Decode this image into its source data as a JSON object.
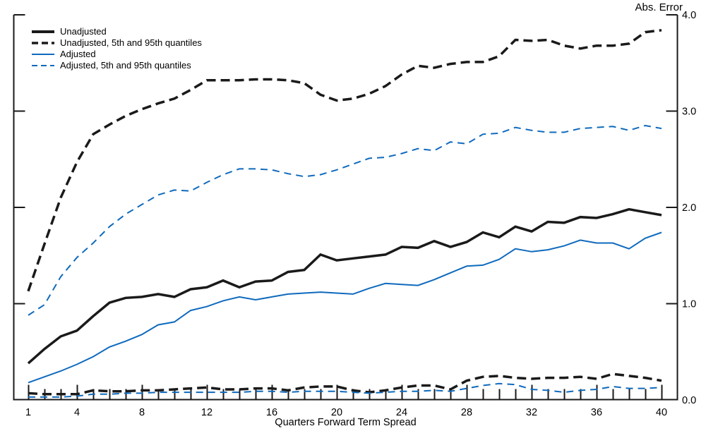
{
  "chart_data": {
    "type": "line",
    "title": "",
    "ylabel": "Abs. Error",
    "xlabel": "Quarters Forward Term Spread",
    "xlim": [
      0.1,
      41
    ],
    "ylim": [
      0.0,
      4.0
    ],
    "grid": false,
    "legend_position": "top-left",
    "y_axis_side": "right",
    "y_tick_values": [
      0,
      1,
      2,
      3,
      4
    ],
    "y_tick_labels": [
      "0.0",
      "1.0",
      "2.0",
      "3.0",
      "4.0"
    ],
    "x_major_ticks": [
      1,
      4,
      8,
      12,
      16,
      20,
      24,
      28,
      32,
      36,
      40
    ],
    "x_minor_tick_step": 1,
    "colors": {
      "black": "#1a1a1a",
      "blue": "#0f6abd"
    },
    "x": [
      1,
      2,
      3,
      4,
      5,
      6,
      7,
      8,
      9,
      10,
      11,
      12,
      13,
      14,
      15,
      16,
      17,
      18,
      19,
      20,
      21,
      22,
      23,
      24,
      25,
      26,
      27,
      28,
      29,
      30,
      31,
      32,
      33,
      34,
      35,
      36,
      37,
      38,
      39,
      40
    ],
    "legend": [
      {
        "label": "Unadjusted",
        "series_id": "unadjusted"
      },
      {
        "label": "Unadjusted, 5th and 95th quantiles",
        "series_id": "unadjusted_q95"
      },
      {
        "label": "Adjusted",
        "series_id": "adjusted"
      },
      {
        "label": "Adjusted, 5th and 95th quantiles",
        "series_id": "adjusted_q95"
      }
    ],
    "series": [
      {
        "id": "unadjusted",
        "name": "Unadjusted",
        "color": "#1a1a1a",
        "style": "solid",
        "width": 3.5,
        "dash_pattern": "",
        "values": [
          0.38,
          0.53,
          0.66,
          0.72,
          0.87,
          1.01,
          1.06,
          1.07,
          1.1,
          1.07,
          1.15,
          1.17,
          1.24,
          1.17,
          1.23,
          1.24,
          1.33,
          1.35,
          1.51,
          1.45,
          1.47,
          1.49,
          1.51,
          1.59,
          1.58,
          1.65,
          1.59,
          1.64,
          1.74,
          1.69,
          1.8,
          1.75,
          1.85,
          1.84,
          1.9,
          1.89,
          1.93,
          1.98,
          1.95,
          1.92
        ]
      },
      {
        "id": "unadjusted_q95",
        "name": "Unadjusted 95th quantile",
        "color": "#1a1a1a",
        "style": "dashed",
        "width": 3.5,
        "dash_pattern": "13 7",
        "values": [
          1.13,
          1.62,
          2.1,
          2.47,
          2.76,
          2.86,
          2.95,
          3.02,
          3.08,
          3.13,
          3.22,
          3.32,
          3.32,
          3.32,
          3.33,
          3.33,
          3.32,
          3.29,
          3.17,
          3.11,
          3.13,
          3.18,
          3.26,
          3.38,
          3.47,
          3.45,
          3.49,
          3.51,
          3.51,
          3.57,
          3.74,
          3.73,
          3.74,
          3.68,
          3.65,
          3.68,
          3.68,
          3.7,
          3.82,
          3.84
        ]
      },
      {
        "id": "unadjusted_q5",
        "name": "Unadjusted 5th quantile",
        "color": "#1a1a1a",
        "style": "dashed",
        "width": 3.5,
        "dash_pattern": "13 7",
        "values": [
          0.07,
          0.06,
          0.06,
          0.06,
          0.1,
          0.09,
          0.09,
          0.1,
          0.1,
          0.11,
          0.12,
          0.13,
          0.11,
          0.11,
          0.12,
          0.12,
          0.1,
          0.13,
          0.14,
          0.14,
          0.1,
          0.08,
          0.1,
          0.13,
          0.15,
          0.15,
          0.11,
          0.2,
          0.24,
          0.25,
          0.23,
          0.22,
          0.23,
          0.23,
          0.24,
          0.22,
          0.27,
          0.25,
          0.23,
          0.2
        ]
      },
      {
        "id": "adjusted",
        "name": "Adjusted",
        "color": "#0f6abd",
        "style": "solid",
        "width": 2,
        "dash_pattern": "",
        "values": [
          0.18,
          0.24,
          0.3,
          0.37,
          0.45,
          0.55,
          0.61,
          0.68,
          0.78,
          0.81,
          0.93,
          0.97,
          1.03,
          1.07,
          1.04,
          1.07,
          1.1,
          1.11,
          1.12,
          1.11,
          1.1,
          1.16,
          1.21,
          1.2,
          1.19,
          1.25,
          1.32,
          1.39,
          1.4,
          1.46,
          1.57,
          1.54,
          1.56,
          1.6,
          1.66,
          1.63,
          1.63,
          1.57,
          1.68,
          1.74
        ]
      },
      {
        "id": "adjusted_q95",
        "name": "Adjusted 95th quantile",
        "color": "#0f6abd",
        "style": "dashed",
        "width": 2,
        "dash_pattern": "10 7",
        "values": [
          0.88,
          0.99,
          1.28,
          1.48,
          1.63,
          1.8,
          1.93,
          2.03,
          2.13,
          2.18,
          2.17,
          2.26,
          2.34,
          2.4,
          2.4,
          2.39,
          2.35,
          2.32,
          2.34,
          2.39,
          2.45,
          2.51,
          2.52,
          2.56,
          2.61,
          2.59,
          2.68,
          2.66,
          2.76,
          2.77,
          2.83,
          2.8,
          2.78,
          2.78,
          2.82,
          2.83,
          2.84,
          2.8,
          2.85,
          2.82
        ]
      },
      {
        "id": "adjusted_q5",
        "name": "Adjusted 5th quantile",
        "color": "#0f6abd",
        "style": "dashed",
        "width": 2,
        "dash_pattern": "10 7",
        "values": [
          0.03,
          0.03,
          0.03,
          0.04,
          0.06,
          0.06,
          0.07,
          0.07,
          0.08,
          0.08,
          0.08,
          0.08,
          0.08,
          0.08,
          0.09,
          0.09,
          0.08,
          0.09,
          0.09,
          0.09,
          0.08,
          0.07,
          0.08,
          0.09,
          0.09,
          0.1,
          0.09,
          0.12,
          0.15,
          0.17,
          0.16,
          0.11,
          0.1,
          0.08,
          0.1,
          0.11,
          0.14,
          0.12,
          0.12,
          0.13
        ]
      }
    ]
  }
}
